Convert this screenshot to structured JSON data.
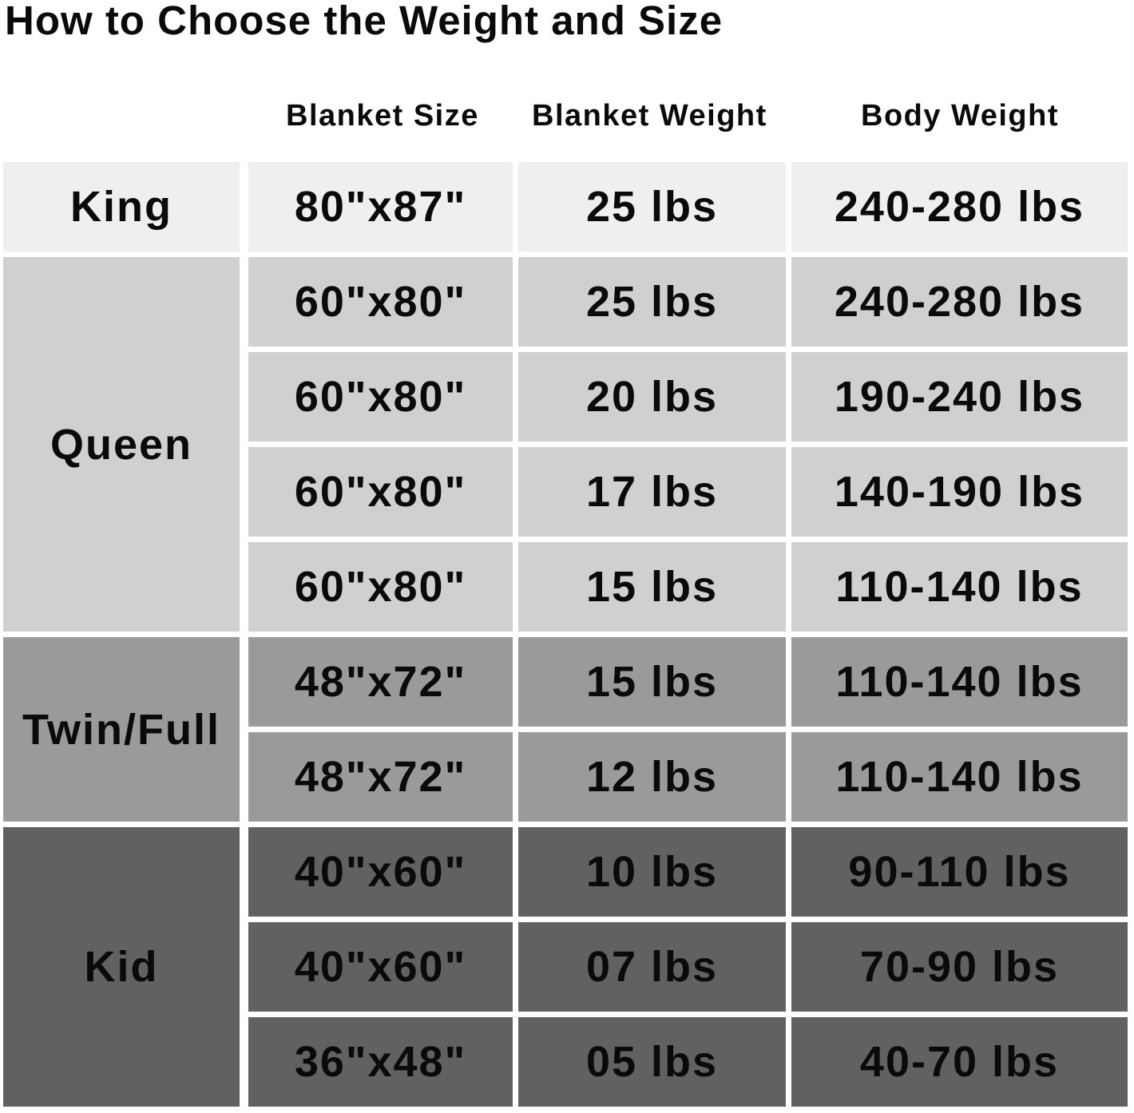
{
  "title": "How to Choose the Weight and Size",
  "headers": [
    "Blanket Size",
    "Blanket Weight",
    "Body Weight"
  ],
  "colors": {
    "King": "#efefef",
    "Queen": "#d0d0d0",
    "Twin/Full": "#9a9a9a",
    "Kid": "#616161"
  },
  "groups": [
    {
      "name": "King",
      "rows": [
        [
          "80\"x87\"",
          "25 lbs",
          "240-280 lbs"
        ]
      ]
    },
    {
      "name": "Queen",
      "rows": [
        [
          "60\"x80\"",
          "25 lbs",
          "240-280 lbs"
        ],
        [
          "60\"x80\"",
          "20 lbs",
          "190-240 lbs"
        ],
        [
          "60\"x80\"",
          "17 lbs",
          "140-190 lbs"
        ],
        [
          "60\"x80\"",
          "15 lbs",
          "110-140 lbs"
        ]
      ]
    },
    {
      "name": "Twin/Full",
      "rows": [
        [
          "48\"x72\"",
          "15 lbs",
          "110-140 lbs"
        ],
        [
          "48\"x72\"",
          "12 lbs",
          "110-140 lbs"
        ]
      ]
    },
    {
      "name": "Kid",
      "rows": [
        [
          "40\"x60\"",
          "10 lbs",
          "90-110 lbs"
        ],
        [
          "40\"x60\"",
          "07 lbs",
          "70-90 lbs"
        ],
        [
          "36\"x48\"",
          "05 lbs",
          "40-70 lbs"
        ]
      ]
    }
  ]
}
